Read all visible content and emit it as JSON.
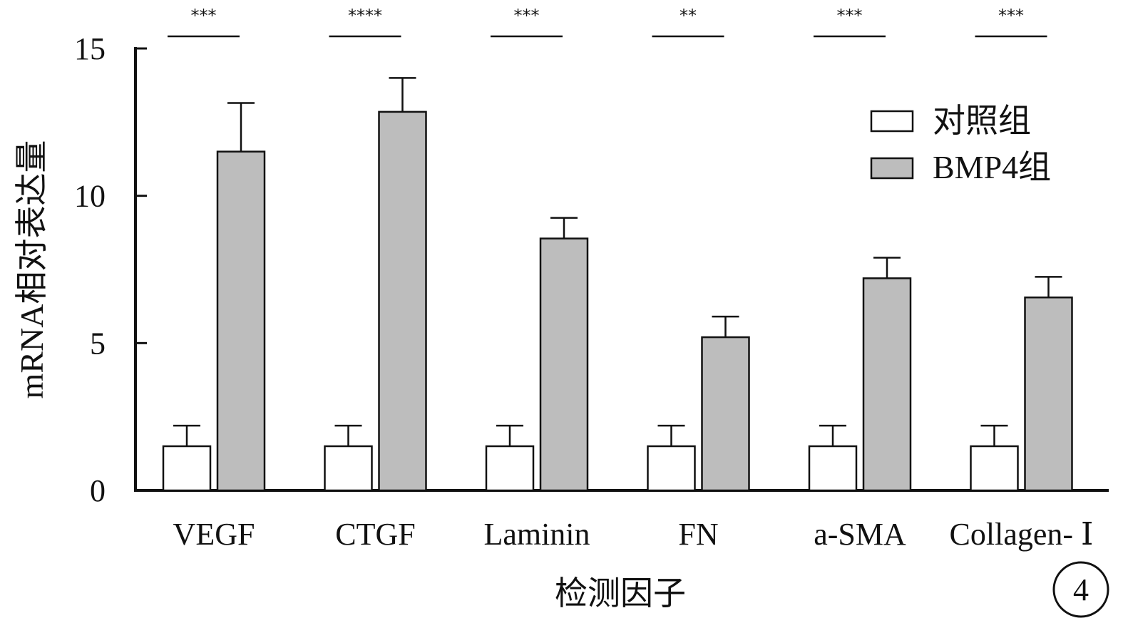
{
  "chart_data": {
    "type": "bar",
    "categories": [
      "VEGF",
      "CTGF",
      "Laminin",
      "FN",
      "a-SMA",
      "Collagen- Ⅰ"
    ],
    "series": [
      {
        "name": "对照组",
        "color": "#ffffff",
        "values": [
          1.5,
          1.5,
          1.5,
          1.5,
          1.5,
          1.5
        ],
        "errors": [
          0.7,
          0.7,
          0.7,
          0.7,
          0.7,
          0.7
        ]
      },
      {
        "name": "BMP4组",
        "color": "#bdbdbd",
        "values": [
          11.5,
          12.85,
          8.55,
          5.2,
          7.2,
          6.55
        ],
        "errors": [
          1.65,
          1.15,
          0.7,
          0.7,
          0.7,
          0.7
        ]
      }
    ],
    "significance": [
      "***",
      "****",
      "***",
      "**",
      "***",
      "***"
    ],
    "xlabel": "检测因子",
    "ylabel": "mRNA相对表达量",
    "ylim": [
      0,
      15
    ],
    "yticks": [
      "0",
      "5",
      "10",
      "15"
    ],
    "legend_position": "top-right",
    "grid": false
  },
  "panel_label": "4"
}
